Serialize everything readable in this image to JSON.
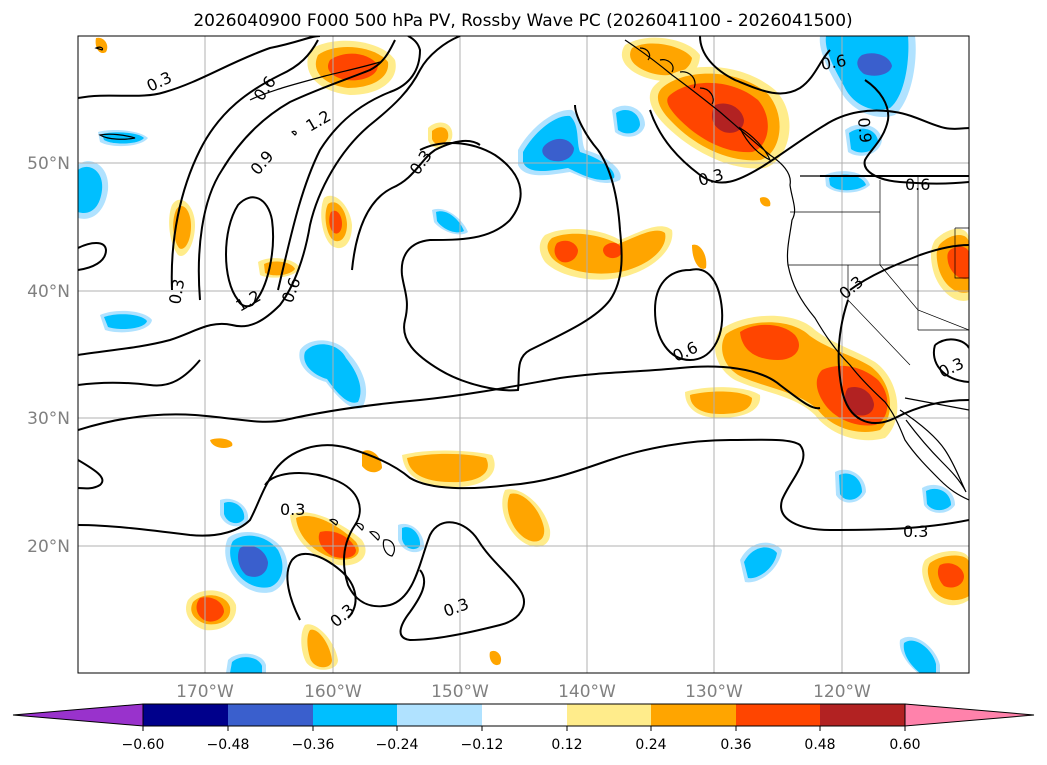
{
  "title": "2026040900 F000 500 hPa PV, Rossby Wave PC (2026041100 - 2026041500)",
  "map": {
    "lon_range": [
      -180,
      -110
    ],
    "lat_range": [
      10,
      60
    ],
    "lat_ticks": [
      {
        "value": 50,
        "label": "50°N"
      },
      {
        "value": 40,
        "label": "40°N"
      },
      {
        "value": 30,
        "label": "30°N"
      },
      {
        "value": 20,
        "label": "20°N"
      }
    ],
    "lon_ticks": [
      {
        "value": -170,
        "label": "170°W"
      },
      {
        "value": -160,
        "label": "160°W"
      },
      {
        "value": -150,
        "label": "150°W"
      },
      {
        "value": -140,
        "label": "140°W"
      },
      {
        "value": -130,
        "label": "130°W"
      },
      {
        "value": -120,
        "label": "120°W"
      }
    ],
    "gridlines": true
  },
  "colorbar": {
    "levels": [
      -0.72,
      -0.6,
      -0.48,
      -0.36,
      -0.24,
      -0.12,
      0.12,
      0.24,
      0.36,
      0.48,
      0.6,
      0.72
    ],
    "labels": [
      "−0.60",
      "−0.48",
      "−0.36",
      "−0.24",
      "−0.12",
      "0.12",
      "0.24",
      "0.36",
      "0.48",
      "0.60"
    ],
    "colors": [
      "#9932cc",
      "#00008b",
      "#3a5fcd",
      "#00bfff",
      "#b0e2ff",
      "#ffffff",
      "#ffec8b",
      "#ffa500",
      "#ff4500",
      "#b22222",
      "#ff82ab"
    ],
    "extend": "both"
  },
  "contour_labels": [
    "0.3",
    "0.6",
    "0.9",
    "1.2"
  ],
  "colors": {
    "contour": "#000000",
    "coastline": "#000000",
    "grid": "#b0b0b0",
    "tick_label": "#808080"
  }
}
